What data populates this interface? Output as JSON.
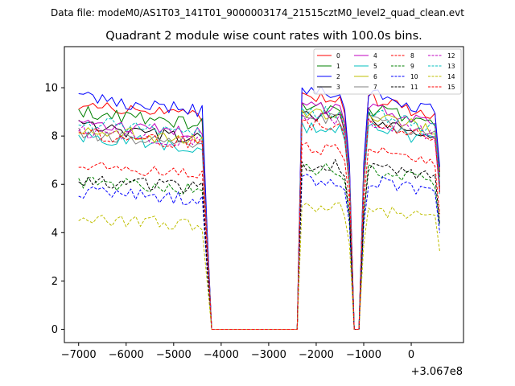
{
  "chart_data": {
    "type": "line",
    "suptitle": "Data file: modeM0/AS1T03_141T01_9000003174_21515cztM0_level2_quad_clean.evt",
    "title": "Quadrant 2 module wise count rates with 100.0s bins.",
    "xlabel": "",
    "ylabel": "",
    "x_offset_label": "+3.067e8",
    "xlim": [
      -7300,
      1100
    ],
    "ylim": [
      -0.55,
      11.7
    ],
    "xticks": [
      -7000,
      -6000,
      -5000,
      -4000,
      -3000,
      -2000,
      -1000,
      0
    ],
    "xtick_labels": [
      "−7000",
      "−6000",
      "−5000",
      "−4000",
      "−3000",
      "−2000",
      "−1000",
      "0"
    ],
    "yticks": [
      0,
      2,
      4,
      6,
      8,
      10
    ],
    "ytick_labels": [
      "0",
      "2",
      "4",
      "6",
      "8",
      "10"
    ],
    "legend": "top-right, 4 columns",
    "x_start": -7000,
    "x_step": 100,
    "x_end": 600,
    "gap_windows": [
      [
        -4270,
        -2370
      ],
      [
        -1270,
        -1020
      ]
    ],
    "dips": [
      [
        -1470,
        -1370
      ]
    ],
    "series": [
      {
        "name": "0",
        "color": "#ff0000",
        "dash": "solid",
        "level": 9.3,
        "after": 9.6
      },
      {
        "name": "1",
        "color": "#008000",
        "dash": "solid",
        "level": 9.0,
        "after": 9.2
      },
      {
        "name": "2",
        "color": "#0000ff",
        "dash": "solid",
        "level": 9.6,
        "after": 9.8
      },
      {
        "name": "3",
        "color": "#000000",
        "dash": "solid",
        "level": 8.4,
        "after": 8.8
      },
      {
        "name": "4",
        "color": "#c000c0",
        "dash": "solid",
        "level": 8.6,
        "after": 9.2
      },
      {
        "name": "5",
        "color": "#00bfbf",
        "dash": "solid",
        "level": 8.0,
        "after": 8.4
      },
      {
        "name": "6",
        "color": "#bfbf00",
        "dash": "solid",
        "level": 8.3,
        "after": 8.9
      },
      {
        "name": "7",
        "color": "#808080",
        "dash": "solid",
        "level": 8.1,
        "after": 8.7
      },
      {
        "name": "8",
        "color": "#ff0000",
        "dash": "dashed",
        "level": 6.8,
        "after": 7.5
      },
      {
        "name": "9",
        "color": "#008000",
        "dash": "dashed",
        "level": 6.1,
        "after": 6.6
      },
      {
        "name": "10",
        "color": "#0000ff",
        "dash": "dashed",
        "level": 5.7,
        "after": 6.2
      },
      {
        "name": "11",
        "color": "#000000",
        "dash": "dashed",
        "level": 6.2,
        "after": 6.8
      },
      {
        "name": "12",
        "color": "#c000c0",
        "dash": "dashed",
        "level": 8.2,
        "after": 8.7
      },
      {
        "name": "13",
        "color": "#00bfbf",
        "dash": "dashed",
        "level": 8.6,
        "after": 9.0
      },
      {
        "name": "14",
        "color": "#bfbf00",
        "dash": "dashed",
        "level": 4.6,
        "after": 5.0
      },
      {
        "name": "15",
        "color": "#ff0000",
        "dash": "dashed",
        "level": 8.1,
        "after": 8.5
      }
    ]
  }
}
